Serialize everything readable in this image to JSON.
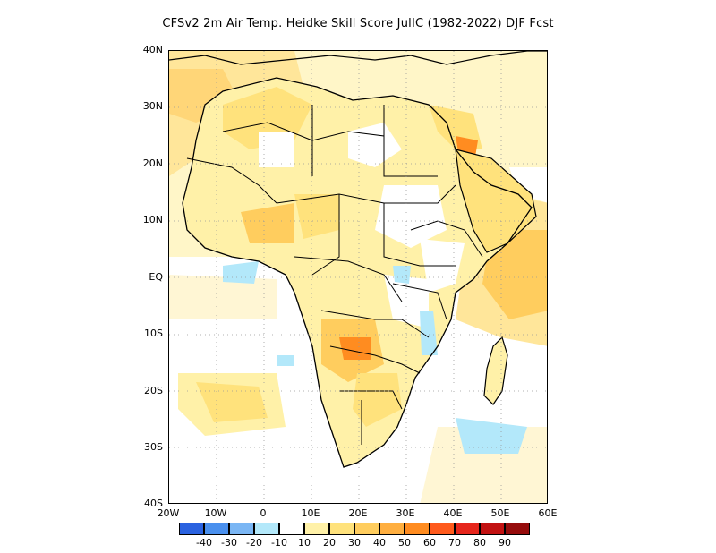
{
  "title": "CFSv2  2m Air Temp. Heidke Skill Score JulIC (1982-2022) DJF Fcst",
  "map": {
    "region": "Africa",
    "lat_range": [
      -40,
      40
    ],
    "lon_range": [
      -20,
      60
    ],
    "lat_ticks": [
      "40N",
      "30N",
      "20N",
      "10N",
      "EQ",
      "10S",
      "20S",
      "30S",
      "40S"
    ],
    "lon_ticks": [
      "20W",
      "10W",
      "0",
      "10E",
      "20E",
      "30E",
      "40E",
      "50E",
      "60E"
    ],
    "grid": "dotted"
  },
  "colorbar": {
    "colors": [
      "#2a62e0",
      "#4a90ee",
      "#7ab6f4",
      "#b3e8fa",
      "#ffffff",
      "#fff1a8",
      "#ffe27c",
      "#ffcd5e",
      "#ffaf40",
      "#ff8c20",
      "#ff5a1c",
      "#e6261c",
      "#c21212",
      "#960c0c"
    ],
    "labels": [
      "-40",
      "-30",
      "-20",
      "-10",
      "10",
      "20",
      "30",
      "40",
      "50",
      "60",
      "70",
      "80",
      "90"
    ]
  }
}
